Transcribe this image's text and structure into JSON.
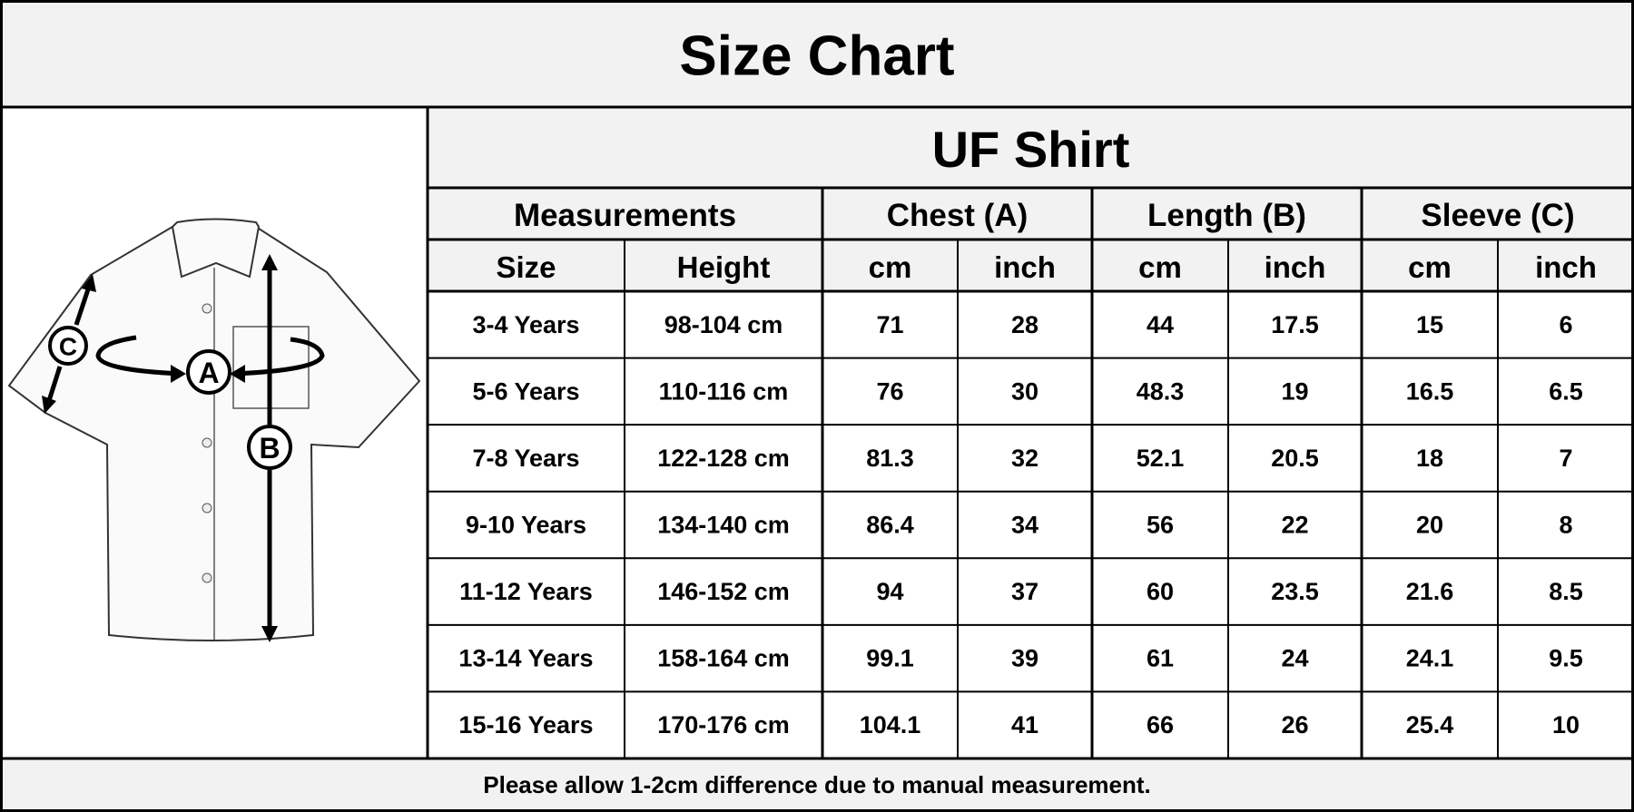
{
  "header": {
    "title": "Size Chart"
  },
  "diagram": {
    "labels": [
      "A",
      "B",
      "C"
    ]
  },
  "table": {
    "title": "UF Shirt",
    "groups": [
      "Measurements",
      "Chest (A)",
      "Length (B)",
      "Sleeve (C)"
    ],
    "columns": [
      "Size",
      "Height",
      "cm",
      "inch",
      "cm",
      "inch",
      "cm",
      "inch"
    ],
    "rows": [
      [
        "3-4 Years",
        "98-104 cm",
        71,
        28,
        44,
        17.5,
        15,
        6
      ],
      [
        "5-6 Years",
        "110-116 cm",
        76,
        30,
        48.3,
        19,
        16.5,
        6.5
      ],
      [
        "7-8 Years",
        "122-128 cm",
        81.3,
        32,
        52.1,
        20.5,
        18,
        7
      ],
      [
        "9-10 Years",
        "134-140 cm",
        86.4,
        34,
        56,
        22,
        20,
        8
      ],
      [
        "11-12 Years",
        "146-152 cm",
        94,
        37,
        60,
        23.5,
        21.6,
        8.5
      ],
      [
        "13-14 Years",
        "158-164 cm",
        99.1,
        39,
        61,
        24,
        24.1,
        9.5
      ],
      [
        "15-16 Years",
        "170-176 cm",
        104.1,
        41,
        66,
        26,
        25.4,
        10
      ]
    ]
  },
  "footer": "Please allow 1-2cm difference due to manual measurement."
}
